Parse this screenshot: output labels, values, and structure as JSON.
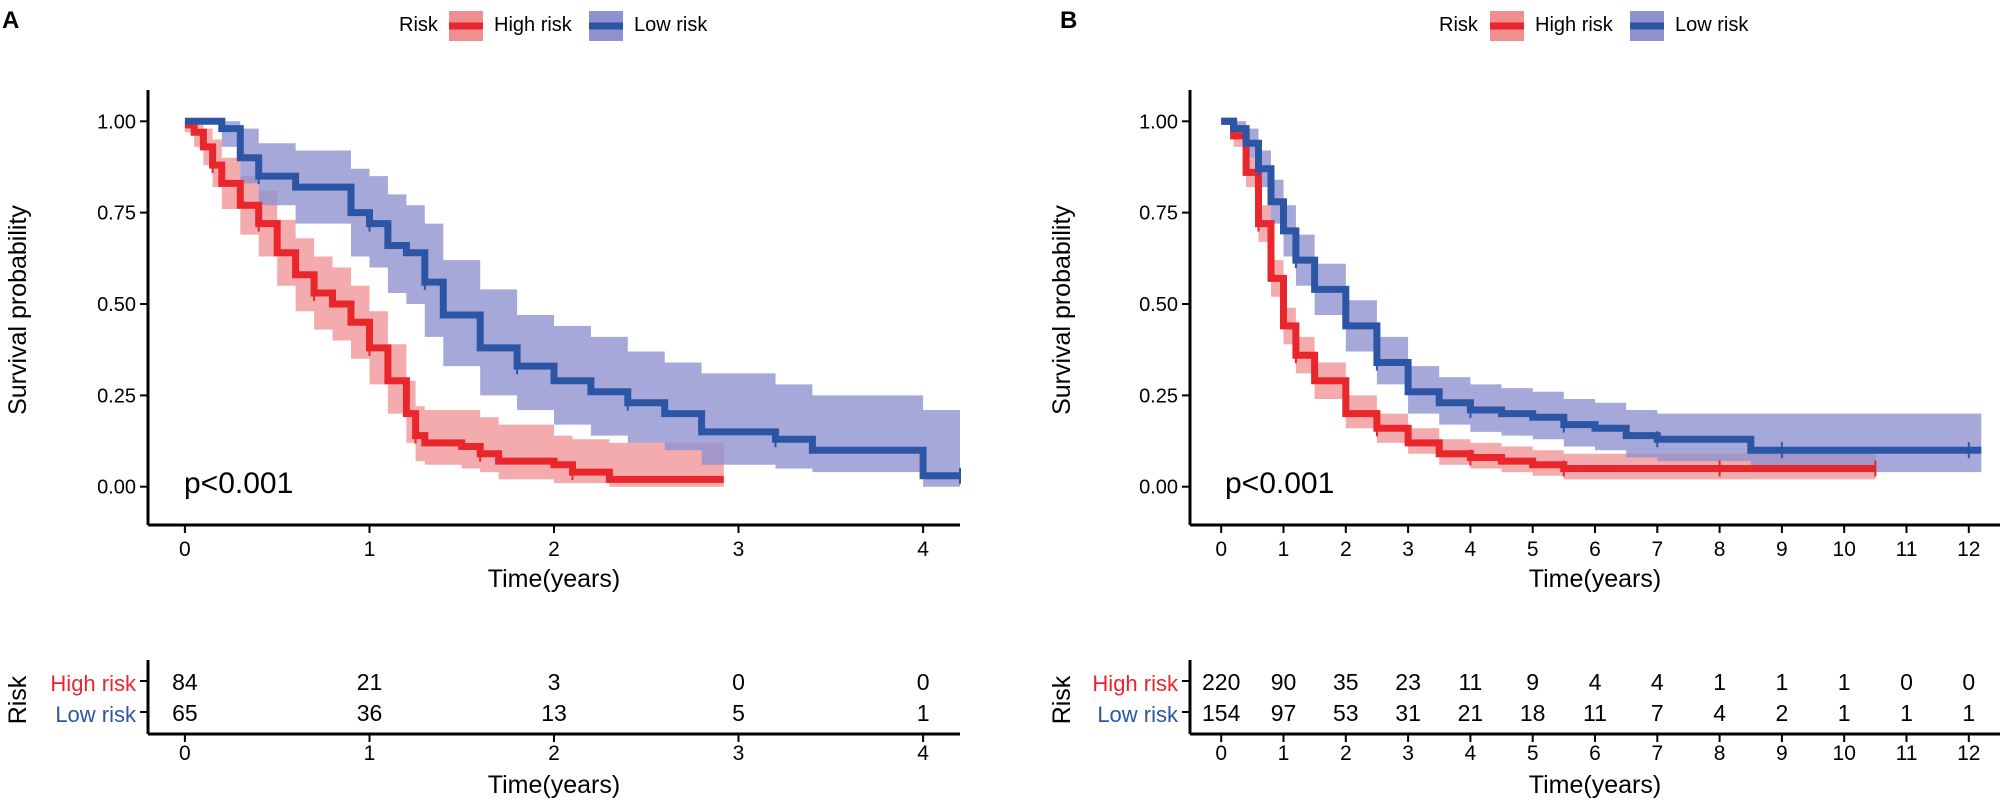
{
  "colors": {
    "high": "#E8262B",
    "high_band": "#F08F92",
    "low": "#2D55A5",
    "low_band": "#8F92CF",
    "axis": "#000000",
    "text": "#000000"
  },
  "chart_data": [
    {
      "type": "line",
      "panel_label": "A",
      "legend": {
        "title": "Risk",
        "entries": [
          "High risk",
          "Low risk"
        ],
        "placement": "top-center"
      },
      "xlabel": "Time(years)",
      "ylabel": "Survival probability",
      "xlim": [
        -0.2,
        4.2
      ],
      "ylim": [
        -0.05,
        1.05
      ],
      "xticks": [
        0,
        1,
        2,
        3,
        4
      ],
      "yticks": [
        "0.00",
        "0.25",
        "0.50",
        "0.75",
        "1.00"
      ],
      "pvalue": "p<0.001",
      "series": [
        {
          "name": "High risk",
          "x": [
            0,
            0.05,
            0.1,
            0.15,
            0.2,
            0.3,
            0.4,
            0.5,
            0.6,
            0.7,
            0.8,
            0.9,
            1.0,
            1.1,
            1.2,
            1.25,
            1.3,
            1.5,
            1.6,
            1.7,
            2.0,
            2.1,
            2.3,
            2.92
          ],
          "y": [
            0.99,
            0.97,
            0.93,
            0.88,
            0.83,
            0.77,
            0.72,
            0.64,
            0.58,
            0.53,
            0.5,
            0.45,
            0.38,
            0.29,
            0.2,
            0.14,
            0.12,
            0.11,
            0.09,
            0.07,
            0.06,
            0.04,
            0.02,
            0.02
          ],
          "lower": [
            0.97,
            0.93,
            0.88,
            0.82,
            0.76,
            0.69,
            0.63,
            0.55,
            0.48,
            0.43,
            0.4,
            0.35,
            0.28,
            0.2,
            0.12,
            0.07,
            0.06,
            0.05,
            0.04,
            0.02,
            0.01,
            0.01,
            0.0,
            0.0
          ],
          "upper": [
            1.0,
            1.0,
            0.98,
            0.95,
            0.9,
            0.85,
            0.81,
            0.73,
            0.68,
            0.63,
            0.6,
            0.55,
            0.48,
            0.39,
            0.29,
            0.22,
            0.21,
            0.21,
            0.19,
            0.17,
            0.14,
            0.13,
            0.12,
            0.11
          ]
        },
        {
          "name": "Low risk",
          "x": [
            0,
            0.2,
            0.3,
            0.4,
            0.6,
            0.9,
            1.0,
            1.1,
            1.2,
            1.3,
            1.4,
            1.6,
            1.8,
            2.0,
            2.2,
            2.4,
            2.6,
            2.8,
            3.2,
            3.4,
            4.0,
            4.2
          ],
          "y": [
            1.0,
            0.98,
            0.9,
            0.85,
            0.82,
            0.75,
            0.72,
            0.66,
            0.64,
            0.56,
            0.47,
            0.38,
            0.33,
            0.29,
            0.26,
            0.23,
            0.2,
            0.15,
            0.13,
            0.1,
            0.03,
            0.03
          ],
          "lower": [
            1.0,
            0.93,
            0.83,
            0.77,
            0.72,
            0.63,
            0.6,
            0.53,
            0.5,
            0.41,
            0.33,
            0.25,
            0.21,
            0.17,
            0.14,
            0.12,
            0.1,
            0.06,
            0.05,
            0.04,
            0.0,
            0.0
          ],
          "upper": [
            1.0,
            1.0,
            0.98,
            0.94,
            0.92,
            0.87,
            0.85,
            0.8,
            0.77,
            0.72,
            0.62,
            0.54,
            0.47,
            0.44,
            0.41,
            0.37,
            0.34,
            0.31,
            0.28,
            0.25,
            0.21,
            0.21
          ]
        }
      ],
      "risk_table": {
        "title": "Risk",
        "xticks": [
          0,
          1,
          2,
          3,
          4
        ],
        "xlabel": "Time(years)",
        "rows": [
          {
            "name": "High risk",
            "values": [
              84,
              21,
              3,
              0,
              0
            ]
          },
          {
            "name": "Low risk",
            "values": [
              65,
              36,
              13,
              5,
              1
            ]
          }
        ]
      }
    },
    {
      "type": "line",
      "panel_label": "B",
      "legend": {
        "title": "Risk",
        "entries": [
          "High risk",
          "Low risk"
        ],
        "placement": "top-center"
      },
      "xlabel": "Time(years)",
      "ylabel": "Survival probability",
      "xlim": [
        -0.5,
        12.5
      ],
      "ylim": [
        -0.05,
        1.05
      ],
      "xticks": [
        0,
        1,
        2,
        3,
        4,
        5,
        6,
        7,
        8,
        9,
        10,
        11,
        12
      ],
      "yticks": [
        "0.00",
        "0.25",
        "0.50",
        "0.75",
        "1.00"
      ],
      "pvalue": "p<0.001",
      "series": [
        {
          "name": "High risk",
          "x": [
            0,
            0.2,
            0.4,
            0.6,
            0.8,
            1.0,
            1.2,
            1.5,
            2.0,
            2.5,
            3.0,
            3.5,
            4.0,
            4.5,
            5.0,
            5.5,
            6.0,
            7.0,
            8.0,
            9.0,
            10.0,
            10.5
          ],
          "y": [
            1.0,
            0.96,
            0.86,
            0.72,
            0.57,
            0.44,
            0.36,
            0.29,
            0.2,
            0.16,
            0.12,
            0.09,
            0.08,
            0.07,
            0.06,
            0.05,
            0.05,
            0.05,
            0.05,
            0.05,
            0.05,
            0.05
          ],
          "lower": [
            0.99,
            0.93,
            0.82,
            0.67,
            0.52,
            0.39,
            0.31,
            0.24,
            0.16,
            0.12,
            0.09,
            0.06,
            0.05,
            0.04,
            0.03,
            0.02,
            0.02,
            0.02,
            0.02,
            0.02,
            0.02,
            0.02
          ],
          "upper": [
            1.0,
            0.99,
            0.9,
            0.77,
            0.62,
            0.49,
            0.41,
            0.34,
            0.25,
            0.2,
            0.16,
            0.13,
            0.12,
            0.11,
            0.1,
            0.09,
            0.09,
            0.09,
            0.09,
            0.09,
            0.09,
            0.09
          ]
        },
        {
          "name": "Low risk",
          "x": [
            0,
            0.2,
            0.4,
            0.6,
            0.8,
            1.0,
            1.2,
            1.5,
            2.0,
            2.5,
            3.0,
            3.5,
            4.0,
            4.5,
            5.0,
            5.5,
            6.0,
            6.5,
            7.0,
            8.0,
            8.5,
            9.0,
            10.0,
            11.0,
            12.0,
            12.2
          ],
          "y": [
            1.0,
            0.98,
            0.94,
            0.87,
            0.78,
            0.7,
            0.62,
            0.54,
            0.44,
            0.34,
            0.26,
            0.23,
            0.21,
            0.2,
            0.19,
            0.17,
            0.16,
            0.14,
            0.13,
            0.13,
            0.1,
            0.1,
            0.1,
            0.1,
            0.1,
            0.1
          ],
          "lower": [
            0.99,
            0.95,
            0.9,
            0.82,
            0.72,
            0.63,
            0.55,
            0.47,
            0.37,
            0.28,
            0.2,
            0.17,
            0.15,
            0.14,
            0.13,
            0.11,
            0.1,
            0.08,
            0.07,
            0.07,
            0.04,
            0.04,
            0.04,
            0.04,
            0.04,
            0.04
          ],
          "upper": [
            1.0,
            1.0,
            0.98,
            0.92,
            0.84,
            0.77,
            0.69,
            0.61,
            0.51,
            0.41,
            0.33,
            0.3,
            0.28,
            0.27,
            0.26,
            0.24,
            0.23,
            0.21,
            0.2,
            0.2,
            0.2,
            0.2,
            0.2,
            0.2,
            0.2,
            0.2
          ]
        }
      ],
      "risk_table": {
        "title": "Risk",
        "xticks": [
          0,
          1,
          2,
          3,
          4,
          5,
          6,
          7,
          8,
          9,
          10,
          11,
          12
        ],
        "xlabel": "Time(years)",
        "rows": [
          {
            "name": "High risk",
            "values": [
              220,
              90,
              35,
              23,
              11,
              9,
              4,
              4,
              1,
              1,
              1,
              0,
              0
            ]
          },
          {
            "name": "Low risk",
            "values": [
              154,
              97,
              53,
              31,
              21,
              18,
              11,
              7,
              4,
              2,
              1,
              1,
              1
            ]
          }
        ]
      }
    }
  ]
}
